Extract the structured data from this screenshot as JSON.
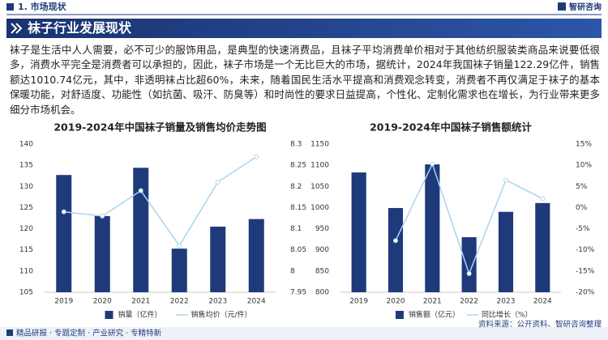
{
  "header": {
    "section": "1. 市场现状",
    "logo": "智研咨询",
    "title": "袜子行业发展现状"
  },
  "body": "袜子是生活中人人需要，必不可少的服饰用品，是典型的快速消费品，且袜子平均消费单价相对于其他纺织服装类商品来说要低很多，消费水平完全是消费者可以承担的，因此，袜子市场是一个无比巨大的市场，据统计，2024年我国袜子销量122.29亿件，销售额达1010.74亿元，其中，非透明袜占比超60%，未来，随着国民生活水平提高和消费观念转变，消费者不再仅满足于袜子的基本保暖功能，对舒适度、功能性（如抗菌、吸汗、防臭等）和时尚性的要求日益提高，个性化、定制化需求也在增长，为行业带来更多细分市场机会。",
  "chart_data": [
    {
      "type": "bar",
      "title": "2019-2024年中国袜子销量及销售均价走势图",
      "categories": [
        "2019",
        "2020",
        "2021",
        "2022",
        "2023",
        "2024"
      ],
      "series": [
        {
          "name": "销量（亿件）",
          "color": "#1f3a7a",
          "values": [
            132.7,
            123,
            134.4,
            115.3,
            120.5,
            122.29
          ]
        },
        {
          "name": "销售均价（元/件）",
          "color": "#a9d5ee",
          "type": "line",
          "axis": "y2",
          "values": [
            8.14,
            8.13,
            8.19,
            8.06,
            8.21,
            8.27
          ]
        }
      ],
      "ylim": [
        105,
        140
      ],
      "yticks": [
        105,
        110,
        115,
        120,
        125,
        130,
        135,
        140
      ],
      "y2lim": [
        7.95,
        8.3
      ],
      "y2ticks": [
        7.95,
        8,
        8.05,
        8.1,
        8.15,
        8.2,
        8.25,
        8.3
      ],
      "legend": "bottom"
    },
    {
      "type": "bar",
      "title": "2019-2024年中国袜子销售额统计",
      "categories": [
        "2019",
        "2020",
        "2021",
        "2022",
        "2023",
        "2024"
      ],
      "series": [
        {
          "name": "销售额（亿元）",
          "color": "#1f3a7a",
          "values": [
            1083,
            999,
            1102,
            930,
            990,
            1010.74
          ]
        },
        {
          "name": "同比增长（%）",
          "color": "#a9d5ee",
          "type": "line",
          "axis": "y2",
          "values": [
            null,
            -7.8,
            10.3,
            -15.6,
            6.5,
            2.1
          ]
        }
      ],
      "ylim": [
        800,
        1150
      ],
      "yticks": [
        800,
        850,
        900,
        950,
        1000,
        1050,
        1100,
        1150
      ],
      "y2lim": [
        -20,
        15
      ],
      "y2ticks": [
        {
          "value": -20,
          "label": "-20%"
        },
        {
          "value": -15,
          "label": "-15%"
        },
        {
          "value": -10,
          "label": "-10%"
        },
        {
          "value": -5,
          "label": "-5%"
        },
        {
          "value": 0,
          "label": "0%"
        },
        {
          "value": 5,
          "label": "5%"
        },
        {
          "value": 10,
          "label": "10%"
        },
        {
          "value": 15,
          "label": "15%"
        }
      ],
      "legend": "bottom"
    }
  ],
  "footer": {
    "tagline": "精品研报 · 专题定制 · 产业研究 · 专精特新",
    "source": "资料来源：公开资料、智研咨询整理"
  }
}
